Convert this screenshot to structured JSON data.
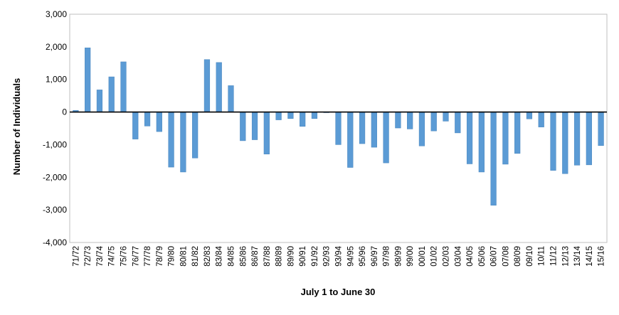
{
  "chart_data": {
    "type": "bar",
    "title": "",
    "xlabel": "July 1 to June 30",
    "ylabel": "Number of Individuals",
    "ylim": [
      -4000,
      3000
    ],
    "yticks": [
      3000,
      2000,
      1000,
      0,
      -1000,
      -2000,
      -3000,
      -4000
    ],
    "ytick_labels": [
      "3,000",
      "2,000",
      "1,000",
      "0",
      "-1,000",
      "-2,000",
      "-3,000",
      "-4,000"
    ],
    "grid": false,
    "legend": "none",
    "bar_color": "#5b9bd5",
    "categories": [
      "71/72",
      "72/73",
      "73/74",
      "74/75",
      "75/76",
      "76/77",
      "77/78",
      "78/79",
      "79/80",
      "80/81",
      "81/82",
      "82/83",
      "83/84",
      "84/85",
      "85/86",
      "86/87",
      "87/88",
      "88/89",
      "89/90",
      "90/91",
      "91/92",
      "92/93",
      "93/94",
      "94/95",
      "95/96",
      "96/97",
      "97/98",
      "98/99",
      "99/00",
      "00/01",
      "01/02",
      "02/03",
      "03/04",
      "04/05",
      "05/06",
      "06/07",
      "07/08",
      "08/09",
      "09/10",
      "10/11",
      "11/12",
      "12/13",
      "13/14",
      "14/15",
      "15/16"
    ],
    "values": [
      50,
      1970,
      680,
      1080,
      1540,
      -830,
      -430,
      -600,
      -1690,
      -1840,
      -1410,
      1610,
      1520,
      810,
      -880,
      -850,
      -1290,
      -240,
      -200,
      -440,
      -200,
      -20,
      -1000,
      -1700,
      -970,
      -1080,
      -1560,
      -490,
      -520,
      -1040,
      -580,
      -280,
      -640,
      -1590,
      -1840,
      -2860,
      -1600,
      -1270,
      -210,
      -460,
      -1790,
      -1890,
      -1630,
      -1620,
      -1030
    ]
  }
}
